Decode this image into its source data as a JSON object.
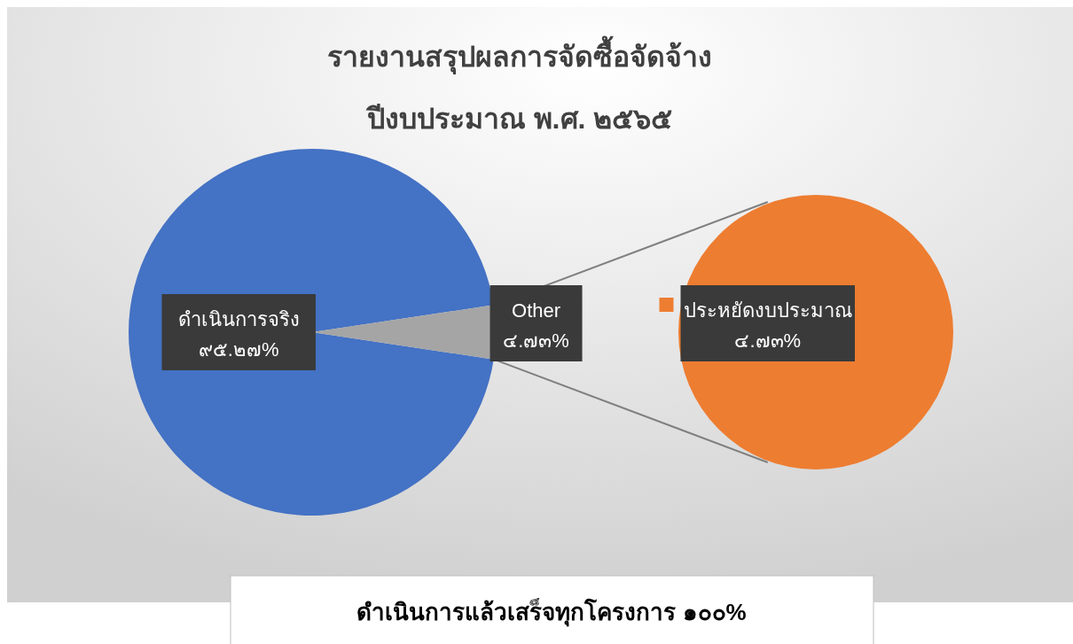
{
  "chart_data": [
    {
      "type": "pie",
      "title": "รายงานสรุปผลการจัดซื้อจัดจ้าง",
      "subtitle": "ปีงบประมาณ พ.ศ. ๒๕๖๕",
      "categories": [
        "ดำเนินการจริง",
        "Other"
      ],
      "values": [
        95.27,
        4.73
      ],
      "colors": [
        "#4472c4",
        "#a5a5a5"
      ],
      "value_labels": [
        "๙๕.๒๗%",
        "๔.๗๓%"
      ],
      "annotations": [
        "ดำเนินการแล้วเสร็จทุกโครงการ ๑๐๐%"
      ]
    },
    {
      "type": "pie",
      "categories": [
        "ประหยัดงบประมาณ"
      ],
      "values": [
        4.73
      ],
      "colors": [
        "#ed7d31"
      ],
      "value_labels": [
        "๔.๗๓%"
      ],
      "legend": "left"
    }
  ]
}
